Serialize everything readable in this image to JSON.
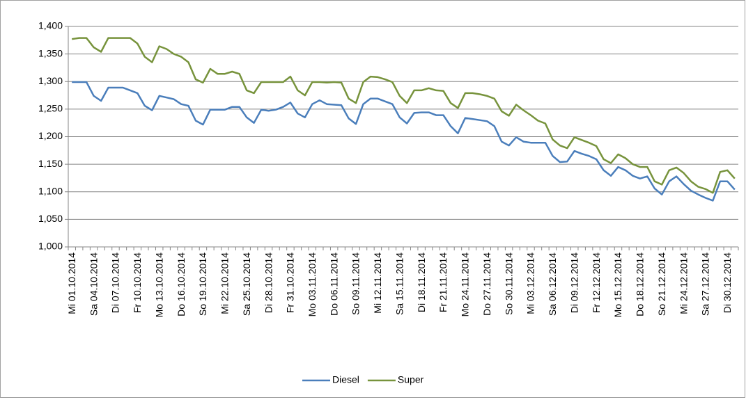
{
  "chart_data": {
    "type": "line",
    "categories": [
      "Mi 01.10.2014",
      null,
      null,
      "Sa 04.10.2014",
      null,
      null,
      "Di 07.10.2014",
      null,
      null,
      "Fr 10.10.2014",
      null,
      null,
      "Mo 13.10.2014",
      null,
      null,
      "Do 16.10.2014",
      null,
      null,
      "So 19.10.2014",
      null,
      null,
      "Mi 22.10.2014",
      null,
      null,
      "Sa 25.10.2014",
      null,
      null,
      "Di 28.10.2014",
      null,
      null,
      "Fr 31.10.2014",
      null,
      null,
      "Mo 03.11.2014",
      null,
      null,
      "Do 06.11.2014",
      null,
      null,
      "So 09.11.2014",
      null,
      null,
      "Mi 12.11.2014",
      null,
      null,
      "Sa 15.11.2014",
      null,
      null,
      "Di 18.11.2014",
      null,
      null,
      "Fr 21.11.2014",
      null,
      null,
      "Mo 24.11.2014",
      null,
      null,
      "Do 27.11.2014",
      null,
      null,
      "So 30.11.2014",
      null,
      null,
      "Mi 03.12.2014",
      null,
      null,
      "Sa 06.12.2014",
      null,
      null,
      "Di 09.12.2014",
      null,
      null,
      "Fr 12.12.2014",
      null,
      null,
      "Mo 15.12.2014",
      null,
      null,
      "Do 18.12.2014",
      null,
      null,
      "So 21.12.2014",
      null,
      null,
      "Mi 24.12.2014",
      null,
      null,
      "Sa 27.12.2014",
      null,
      null,
      "Di 30.12.2014",
      null
    ],
    "series": [
      {
        "name": "Diesel",
        "color": "#4a7ebb",
        "values": [
          1.299,
          1.299,
          1.299,
          1.274,
          1.265,
          1.289,
          1.289,
          1.289,
          1.284,
          1.279,
          1.256,
          1.248,
          1.274,
          1.271,
          1.268,
          1.259,
          1.256,
          1.229,
          1.222,
          1.249,
          1.249,
          1.249,
          1.254,
          1.254,
          1.235,
          1.225,
          1.249,
          1.247,
          1.249,
          1.254,
          1.262,
          1.242,
          1.235,
          1.259,
          1.266,
          1.259,
          1.258,
          1.257,
          1.233,
          1.223,
          1.259,
          1.269,
          1.269,
          1.264,
          1.259,
          1.235,
          1.224,
          1.243,
          1.244,
          1.244,
          1.239,
          1.239,
          1.219,
          1.206,
          1.234,
          1.232,
          1.23,
          1.228,
          1.219,
          1.191,
          1.184,
          1.199,
          1.191,
          1.189,
          1.189,
          1.189,
          1.165,
          1.154,
          1.155,
          1.174,
          1.169,
          1.165,
          1.159,
          1.139,
          1.129,
          1.145,
          1.139,
          1.129,
          1.124,
          1.128,
          1.106,
          1.095,
          1.119,
          1.128,
          1.114,
          1.102,
          1.095,
          1.089,
          1.084,
          1.119,
          1.119,
          1.104
        ]
      },
      {
        "name": "Super",
        "color": "#77933c",
        "values": [
          1.377,
          1.379,
          1.379,
          1.362,
          1.354,
          1.379,
          1.379,
          1.379,
          1.379,
          1.369,
          1.345,
          1.335,
          1.364,
          1.359,
          1.35,
          1.345,
          1.335,
          1.304,
          1.298,
          1.323,
          1.314,
          1.314,
          1.318,
          1.314,
          1.284,
          1.279,
          1.299,
          1.299,
          1.299,
          1.299,
          1.309,
          1.284,
          1.275,
          1.299,
          1.299,
          1.298,
          1.299,
          1.298,
          1.269,
          1.261,
          1.299,
          1.309,
          1.308,
          1.304,
          1.299,
          1.274,
          1.261,
          1.284,
          1.284,
          1.288,
          1.284,
          1.283,
          1.261,
          1.252,
          1.279,
          1.279,
          1.277,
          1.274,
          1.269,
          1.246,
          1.238,
          1.258,
          1.248,
          1.239,
          1.229,
          1.224,
          1.195,
          1.184,
          1.179,
          1.199,
          1.194,
          1.189,
          1.183,
          1.159,
          1.152,
          1.168,
          1.161,
          1.15,
          1.145,
          1.145,
          1.119,
          1.113,
          1.139,
          1.144,
          1.134,
          1.119,
          1.109,
          1.105,
          1.098,
          1.136,
          1.139,
          1.124
        ]
      }
    ],
    "ylim": [
      1.0,
      1.4
    ],
    "yticks": [
      {
        "value": 1.0,
        "label": "1,000"
      },
      {
        "value": 1.05,
        "label": "1,050"
      },
      {
        "value": 1.1,
        "label": "1,100"
      },
      {
        "value": 1.15,
        "label": "1,150"
      },
      {
        "value": 1.2,
        "label": "1,200"
      },
      {
        "value": 1.25,
        "label": "1,250"
      },
      {
        "value": 1.3,
        "label": "1,300"
      },
      {
        "value": 1.35,
        "label": "1,350"
      },
      {
        "value": 1.4,
        "label": "1,400"
      }
    ],
    "grid": true,
    "legend": "bottom"
  }
}
